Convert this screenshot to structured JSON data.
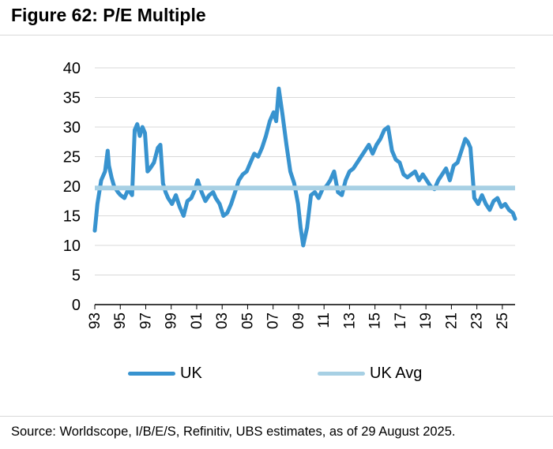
{
  "figure": {
    "title": "Figure 62: P/E Multiple",
    "source": "Source: Worldscope, I/B/E/S, Refinitiv, UBS estimates, as of 29 August 2025."
  },
  "colors": {
    "uk": "#3893cf",
    "uk_avg": "#a7d0e4",
    "grid": "#d9d9d9",
    "axis": "#000000"
  },
  "chart_data": {
    "type": "line",
    "title": "P/E Multiple",
    "xlabel": "",
    "ylabel": "",
    "ylim": [
      0,
      40
    ],
    "yticks": [
      "0",
      "5",
      "10",
      "15",
      "20",
      "25",
      "30",
      "35",
      "40"
    ],
    "xlim": [
      1993,
      2025.67
    ],
    "xticks": [
      "93",
      "95",
      "97",
      "99",
      "01",
      "03",
      "05",
      "07",
      "09",
      "11",
      "13",
      "15",
      "17",
      "19",
      "21",
      "23",
      "25"
    ],
    "grid": true,
    "legend_position": "bottom",
    "series": [
      {
        "name": "UK",
        "x": [
          1993.0,
          1993.2,
          1993.5,
          1993.8,
          1994.0,
          1994.1,
          1994.3,
          1994.5,
          1994.8,
          1995.0,
          1995.3,
          1995.6,
          1995.9,
          1996.1,
          1996.3,
          1996.5,
          1996.7,
          1996.9,
          1997.1,
          1997.3,
          1997.6,
          1997.9,
          1998.1,
          1998.3,
          1998.5,
          1998.7,
          1999.0,
          1999.3,
          1999.6,
          1999.9,
          2000.2,
          2000.5,
          2000.8,
          2001.0,
          2001.3,
          2001.6,
          2001.9,
          2002.2,
          2002.4,
          2002.7,
          2003.0,
          2003.3,
          2003.6,
          2003.9,
          2004.2,
          2004.5,
          2004.8,
          2005.1,
          2005.4,
          2005.7,
          2006.0,
          2006.3,
          2006.6,
          2006.9,
          2007.1,
          2007.3,
          2007.6,
          2007.9,
          2008.2,
          2008.5,
          2008.8,
          2009.0,
          2009.2,
          2009.5,
          2009.8,
          2010.1,
          2010.4,
          2010.7,
          2011.0,
          2011.3,
          2011.6,
          2011.9,
          2012.2,
          2012.5,
          2012.8,
          2013.1,
          2013.4,
          2013.7,
          2014.0,
          2014.3,
          2014.6,
          2014.9,
          2015.2,
          2015.5,
          2015.8,
          2016.1,
          2016.4,
          2016.7,
          2017.0,
          2017.3,
          2017.6,
          2017.9,
          2018.2,
          2018.5,
          2018.8,
          2019.1,
          2019.4,
          2019.7,
          2020.0,
          2020.3,
          2020.6,
          2020.9,
          2021.2,
          2021.5,
          2021.8,
          2022.0,
          2022.2,
          2022.5,
          2022.8,
          2023.1,
          2023.4,
          2023.7,
          2024.0,
          2024.3,
          2024.6,
          2024.9,
          2025.2,
          2025.5,
          2025.67
        ],
        "values": [
          12.5,
          17.0,
          21.0,
          22.5,
          26.0,
          23.5,
          21.5,
          20.0,
          19.0,
          18.5,
          18.0,
          19.5,
          18.5,
          29.5,
          30.5,
          28.5,
          30.0,
          29.0,
          22.5,
          23.0,
          24.0,
          26.5,
          27.0,
          20.5,
          19.0,
          18.0,
          17.0,
          18.5,
          16.5,
          15.0,
          17.5,
          18.0,
          19.5,
          21.0,
          19.0,
          17.5,
          18.5,
          19.0,
          18.0,
          17.0,
          15.0,
          15.5,
          17.0,
          19.0,
          21.0,
          22.0,
          22.5,
          24.0,
          25.5,
          25.0,
          26.5,
          28.5,
          31.0,
          32.5,
          31.0,
          36.5,
          32.0,
          27.0,
          22.5,
          20.5,
          17.0,
          13.0,
          10.0,
          13.0,
          18.5,
          19.0,
          18.0,
          19.5,
          20.0,
          21.0,
          22.5,
          19.0,
          18.5,
          21.0,
          22.5,
          23.0,
          24.0,
          25.0,
          26.0,
          27.0,
          25.5,
          27.0,
          28.0,
          29.5,
          30.0,
          26.0,
          24.5,
          24.0,
          22.0,
          21.5,
          22.0,
          22.5,
          21.0,
          22.0,
          21.0,
          20.0,
          19.5,
          21.0,
          22.0,
          23.0,
          21.0,
          23.5,
          24.0,
          26.0,
          28.0,
          27.5,
          26.5,
          18.0,
          17.0,
          18.5,
          17.0,
          16.0,
          17.5,
          18.0,
          16.5,
          17.0,
          16.0,
          15.5,
          14.5
        ],
        "color": "#3893cf"
      },
      {
        "name": "UK Avg",
        "x": [
          1993.0,
          2025.67
        ],
        "values": [
          19.7,
          19.7
        ],
        "color": "#a7d0e4"
      }
    ]
  }
}
